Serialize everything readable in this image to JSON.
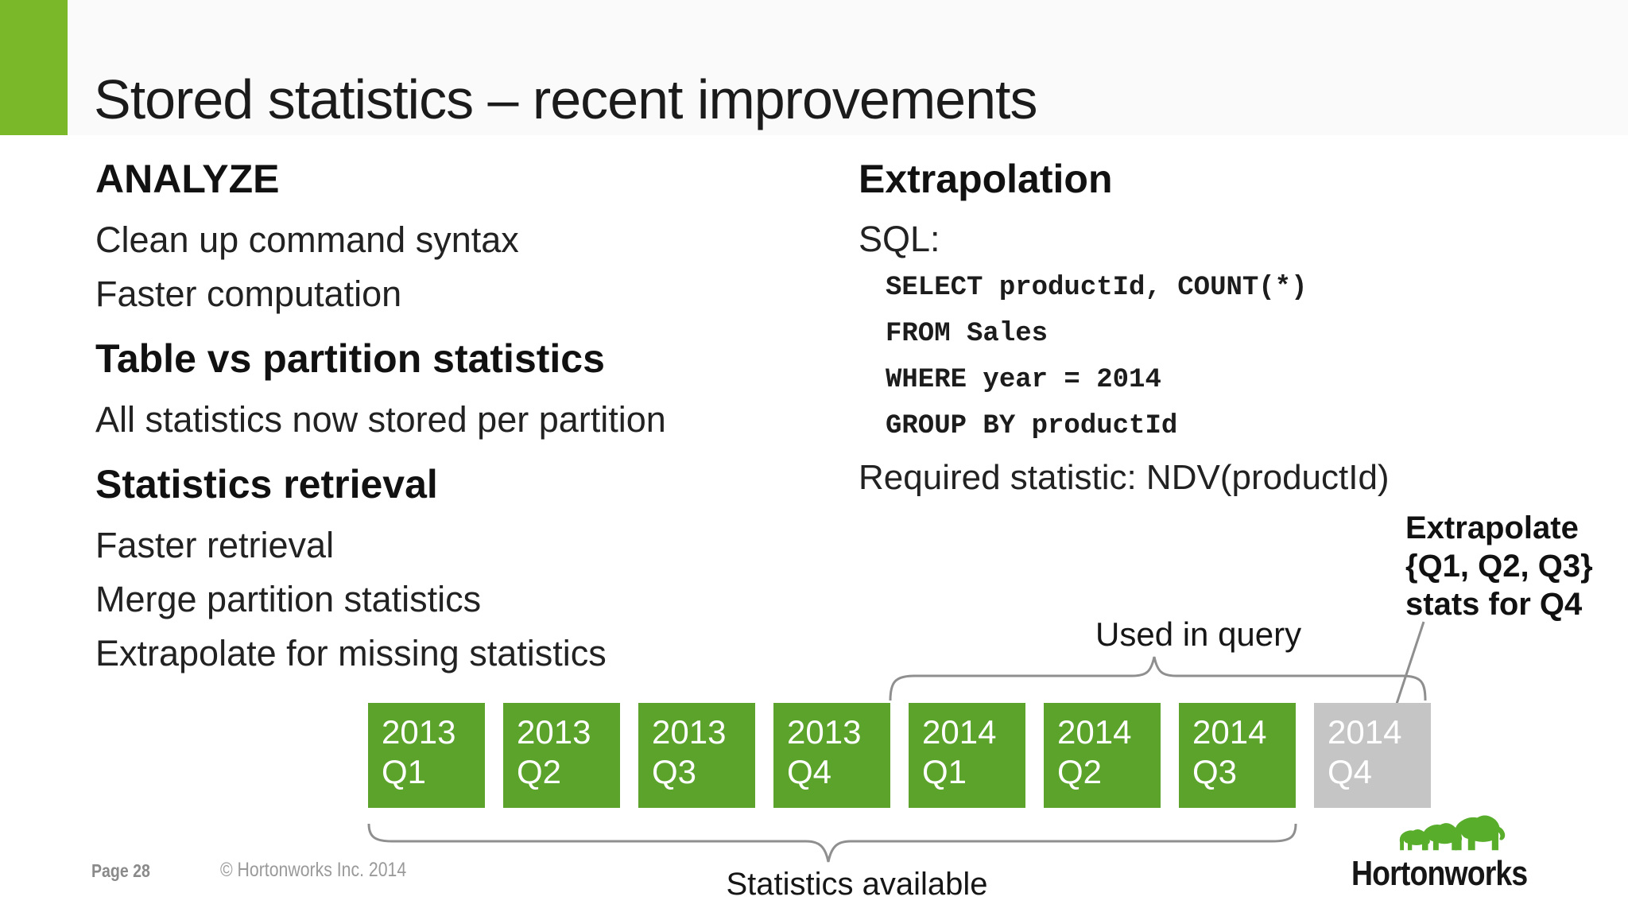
{
  "slide": {
    "title": "Stored statistics – recent improvements",
    "footer": {
      "page_label": "Page 28",
      "copyright": "© Hortonworks Inc. 2014"
    }
  },
  "left_column": {
    "sections": [
      {
        "heading": "ANALYZE",
        "items": [
          "Clean up command syntax",
          "Faster computation"
        ]
      },
      {
        "heading": "Table vs partition statistics",
        "items": [
          "All statistics now stored per partition"
        ]
      },
      {
        "heading": "Statistics retrieval",
        "items": [
          "Faster retrieval",
          "Merge partition statistics",
          "Extrapolate for missing statistics"
        ]
      }
    ]
  },
  "right_column": {
    "heading": "Extrapolation",
    "sql_label": "SQL:",
    "code_lines": [
      "SELECT productId, COUNT(*)",
      "FROM Sales",
      "WHERE year = 2014",
      "GROUP BY productId"
    ],
    "required_stat": "Required statistic: NDV(productId)"
  },
  "timeline": {
    "quarters": [
      {
        "year": "2013",
        "quarter": "Q1",
        "stats_available": true
      },
      {
        "year": "2013",
        "quarter": "Q2",
        "stats_available": true
      },
      {
        "year": "2013",
        "quarter": "Q3",
        "stats_available": true
      },
      {
        "year": "2013",
        "quarter": "Q4",
        "stats_available": true
      },
      {
        "year": "2014",
        "quarter": "Q1",
        "stats_available": true
      },
      {
        "year": "2014",
        "quarter": "Q2",
        "stats_available": true
      },
      {
        "year": "2014",
        "quarter": "Q3",
        "stats_available": true
      },
      {
        "year": "2014",
        "quarter": "Q4",
        "stats_available": false
      }
    ],
    "used_in_query_label": "Used in query",
    "extrapolate_note_lines": [
      "Extrapolate",
      "{Q1, Q2, Q3}",
      "stats for Q4"
    ],
    "statistics_available_label": "Statistics available"
  },
  "logo": {
    "brand": "Hortonworks"
  },
  "colors": {
    "accent_green": "#7ab829",
    "box_green": "#5ca32c",
    "box_gray": "#c5c5c5",
    "annotation_gray": "#8f8f8f",
    "logo_green": "#58ad2b",
    "header_band": "#fafafa"
  }
}
